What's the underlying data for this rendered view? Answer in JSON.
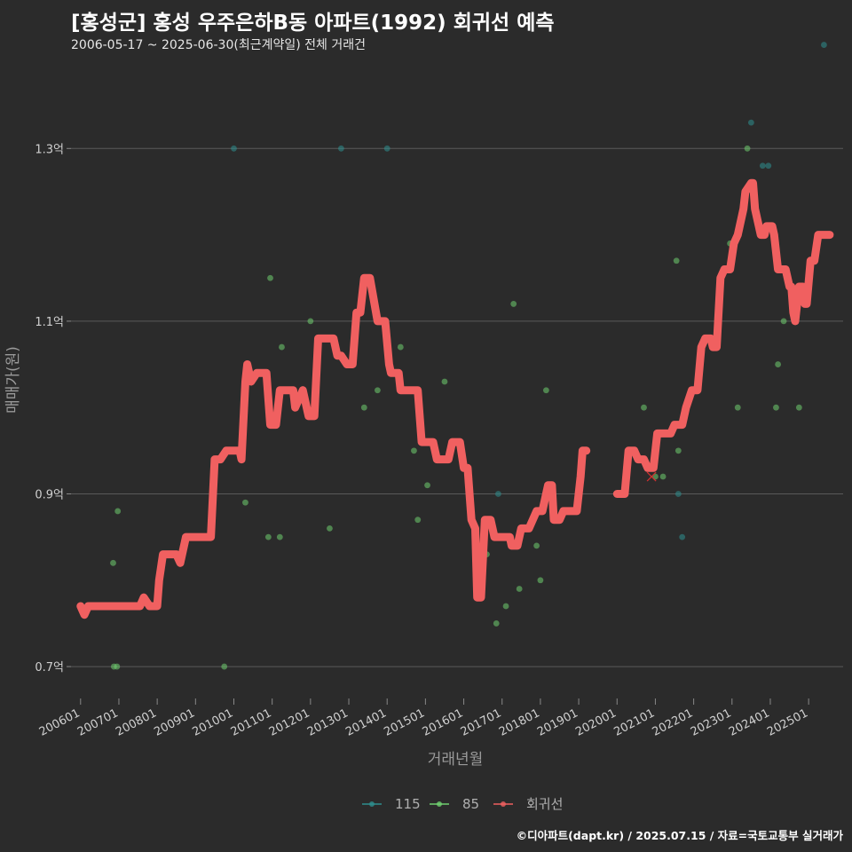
{
  "title": "[홍성군] 홍성 우주은하B동 아파트(1992) 회귀선 예측",
  "subtitle": "2006-05-17 ~ 2025-06-30(최근계약일) 전체 거래건",
  "caption": "©디아파트(dapt.kr) / 2025.07.15 / 자료=국토교통부 실거래가",
  "colors": {
    "background": "#2b2b2b",
    "grid": "#5a5a5a",
    "s115": "#2e8f8f",
    "s85": "#6fcf6f",
    "regression": "#f06060"
  },
  "chart_data": {
    "type": "scatter",
    "title": "[홍성군] 홍성 우주은하B동 아파트(1992) 회귀선 예측",
    "xlabel": "거래년월",
    "ylabel": "매매가(원)",
    "xlim": [
      2005.75,
      2025.9
    ],
    "ylim": [
      0.66,
      1.4
    ],
    "y_ticks": [
      0.7,
      0.9,
      1.1,
      1.3
    ],
    "y_tick_labels": [
      "0.7억",
      "0.9억",
      "1.1억",
      "1.3억"
    ],
    "x_ticks": [
      2006,
      2007,
      2008,
      2009,
      2010,
      2011,
      2012,
      2013,
      2014,
      2015,
      2016,
      2017,
      2018,
      2019,
      2020,
      2021,
      2022,
      2023,
      2024,
      2025
    ],
    "x_tick_labels": [
      "200601",
      "200701",
      "200801",
      "200901",
      "201001",
      "201101",
      "201201",
      "201301",
      "201401",
      "201501",
      "201601",
      "201701",
      "201801",
      "201901",
      "202001",
      "202101",
      "202201",
      "202301",
      "202401",
      "202501"
    ],
    "legend": [
      "115",
      "85",
      "회귀선"
    ],
    "series": [
      {
        "name": "115",
        "color": "#2e8f8f",
        "points": [
          [
            2010.0,
            1.3
          ],
          [
            2012.8,
            1.3
          ],
          [
            2014.0,
            1.3
          ],
          [
            2016.9,
            0.9
          ],
          [
            2021.6,
            0.9
          ],
          [
            2021.7,
            0.85
          ],
          [
            2023.5,
            1.33
          ],
          [
            2023.8,
            1.28
          ],
          [
            2023.95,
            1.28
          ],
          [
            2025.4,
            1.42
          ]
        ]
      },
      {
        "name": "85",
        "color": "#6fcf6f",
        "points": [
          [
            2006.85,
            0.82
          ],
          [
            2006.87,
            0.7
          ],
          [
            2006.95,
            0.7
          ],
          [
            2006.97,
            0.88
          ],
          [
            2007.3,
            0.77
          ],
          [
            2009.75,
            0.7
          ],
          [
            2010.3,
            0.89
          ],
          [
            2010.9,
            0.85
          ],
          [
            2010.95,
            1.15
          ],
          [
            2011.2,
            0.85
          ],
          [
            2011.25,
            1.07
          ],
          [
            2012.0,
            1.1
          ],
          [
            2012.5,
            0.86
          ],
          [
            2013.4,
            1.0
          ],
          [
            2013.75,
            1.02
          ],
          [
            2014.35,
            1.07
          ],
          [
            2014.7,
            0.95
          ],
          [
            2014.8,
            0.87
          ],
          [
            2015.05,
            0.91
          ],
          [
            2015.5,
            1.03
          ],
          [
            2016.6,
            0.83
          ],
          [
            2016.85,
            0.75
          ],
          [
            2017.1,
            0.77
          ],
          [
            2017.3,
            1.12
          ],
          [
            2017.45,
            0.79
          ],
          [
            2017.9,
            0.84
          ],
          [
            2018.0,
            0.8
          ],
          [
            2018.15,
            1.02
          ],
          [
            2020.7,
            1.0
          ],
          [
            2021.0,
            0.92
          ],
          [
            2021.2,
            0.92
          ],
          [
            2021.55,
            1.17
          ],
          [
            2021.6,
            0.95
          ],
          [
            2022.95,
            1.19
          ],
          [
            2023.15,
            1.0
          ],
          [
            2023.4,
            1.3
          ],
          [
            2024.15,
            1.0
          ],
          [
            2024.2,
            1.05
          ],
          [
            2024.35,
            1.1
          ],
          [
            2024.75,
            1.0
          ]
        ]
      },
      {
        "name": "회귀선",
        "color": "#f06060",
        "segments": [
          [
            [
              2006.0,
              0.77
            ],
            [
              2006.1,
              0.76
            ],
            [
              2006.2,
              0.77
            ],
            [
              2006.5,
              0.77
            ],
            [
              2007.0,
              0.77
            ],
            [
              2007.5,
              0.77
            ],
            [
              2007.55,
              0.77
            ],
            [
              2007.65,
              0.78
            ],
            [
              2007.8,
              0.77
            ],
            [
              2008.0,
              0.77
            ],
            [
              2008.05,
              0.8
            ],
            [
              2008.15,
              0.83
            ],
            [
              2008.5,
              0.83
            ],
            [
              2008.6,
              0.82
            ],
            [
              2008.75,
              0.85
            ],
            [
              2009.2,
              0.85
            ],
            [
              2009.4,
              0.85
            ],
            [
              2009.5,
              0.94
            ],
            [
              2009.65,
              0.94
            ],
            [
              2009.8,
              0.95
            ],
            [
              2010.0,
              0.95
            ],
            [
              2010.15,
              0.95
            ],
            [
              2010.2,
              0.94
            ],
            [
              2010.3,
              1.03
            ],
            [
              2010.35,
              1.05
            ],
            [
              2010.45,
              1.03
            ],
            [
              2010.6,
              1.04
            ],
            [
              2010.85,
              1.04
            ],
            [
              2010.95,
              0.98
            ],
            [
              2011.1,
              0.98
            ],
            [
              2011.2,
              1.02
            ],
            [
              2011.55,
              1.02
            ],
            [
              2011.6,
              1.0
            ],
            [
              2011.8,
              1.02
            ],
            [
              2011.95,
              0.99
            ],
            [
              2012.1,
              0.99
            ],
            [
              2012.2,
              1.08
            ],
            [
              2012.6,
              1.08
            ],
            [
              2012.7,
              1.06
            ],
            [
              2012.8,
              1.06
            ],
            [
              2012.95,
              1.05
            ],
            [
              2013.1,
              1.05
            ],
            [
              2013.2,
              1.11
            ],
            [
              2013.3,
              1.11
            ],
            [
              2013.4,
              1.15
            ],
            [
              2013.55,
              1.15
            ],
            [
              2013.75,
              1.1
            ],
            [
              2013.95,
              1.1
            ],
            [
              2014.05,
              1.05
            ],
            [
              2014.1,
              1.04
            ],
            [
              2014.3,
              1.04
            ],
            [
              2014.35,
              1.02
            ],
            [
              2014.8,
              1.02
            ],
            [
              2014.9,
              0.96
            ],
            [
              2015.2,
              0.96
            ],
            [
              2015.3,
              0.94
            ],
            [
              2015.6,
              0.94
            ],
            [
              2015.7,
              0.96
            ],
            [
              2015.9,
              0.96
            ],
            [
              2016.0,
              0.93
            ],
            [
              2016.1,
              0.93
            ],
            [
              2016.2,
              0.87
            ],
            [
              2016.3,
              0.86
            ],
            [
              2016.35,
              0.78
            ],
            [
              2016.4,
              0.78
            ],
            [
              2016.45,
              0.78
            ],
            [
              2016.55,
              0.87
            ],
            [
              2016.7,
              0.87
            ],
            [
              2016.8,
              0.85
            ],
            [
              2017.2,
              0.85
            ],
            [
              2017.25,
              0.84
            ],
            [
              2017.4,
              0.84
            ],
            [
              2017.5,
              0.86
            ],
            [
              2017.7,
              0.86
            ],
            [
              2017.9,
              0.88
            ],
            [
              2018.05,
              0.88
            ],
            [
              2018.2,
              0.91
            ],
            [
              2018.3,
              0.91
            ],
            [
              2018.35,
              0.87
            ],
            [
              2018.5,
              0.87
            ],
            [
              2018.6,
              0.88
            ],
            [
              2018.95,
              0.88
            ],
            [
              2019.05,
              0.92
            ],
            [
              2019.1,
              0.95
            ],
            [
              2019.2,
              0.95
            ]
          ],
          [
            [
              2020.0,
              0.9
            ],
            [
              2020.2,
              0.9
            ],
            [
              2020.3,
              0.95
            ],
            [
              2020.45,
              0.95
            ],
            [
              2020.55,
              0.94
            ],
            [
              2020.7,
              0.94
            ],
            [
              2020.8,
              0.93
            ],
            [
              2020.95,
              0.93
            ],
            [
              2021.05,
              0.97
            ],
            [
              2021.3,
              0.97
            ],
            [
              2021.4,
              0.97
            ],
            [
              2021.5,
              0.98
            ],
            [
              2021.7,
              0.98
            ],
            [
              2021.8,
              1.0
            ],
            [
              2021.95,
              1.02
            ],
            [
              2022.1,
              1.02
            ],
            [
              2022.2,
              1.07
            ],
            [
              2022.3,
              1.08
            ],
            [
              2022.45,
              1.08
            ],
            [
              2022.5,
              1.07
            ],
            [
              2022.6,
              1.07
            ],
            [
              2022.7,
              1.15
            ],
            [
              2022.8,
              1.16
            ],
            [
              2022.95,
              1.16
            ],
            [
              2023.05,
              1.19
            ],
            [
              2023.15,
              1.2
            ],
            [
              2023.3,
              1.23
            ],
            [
              2023.35,
              1.25
            ],
            [
              2023.5,
              1.26
            ],
            [
              2023.55,
              1.26
            ],
            [
              2023.6,
              1.23
            ],
            [
              2023.75,
              1.2
            ],
            [
              2023.85,
              1.2
            ],
            [
              2023.9,
              1.21
            ],
            [
              2024.05,
              1.21
            ],
            [
              2024.1,
              1.2
            ],
            [
              2024.2,
              1.16
            ],
            [
              2024.4,
              1.16
            ],
            [
              2024.5,
              1.14
            ],
            [
              2024.55,
              1.14
            ],
            [
              2024.6,
              1.11
            ],
            [
              2024.65,
              1.1
            ],
            [
              2024.75,
              1.14
            ],
            [
              2024.85,
              1.14
            ],
            [
              2024.9,
              1.12
            ],
            [
              2024.95,
              1.12
            ],
            [
              2025.05,
              1.17
            ],
            [
              2025.15,
              1.17
            ],
            [
              2025.25,
              1.2
            ],
            [
              2025.55,
              1.2
            ]
          ]
        ]
      }
    ],
    "annotations": [
      {
        "type": "cross-marker",
        "x": 2020.9,
        "y": 0.92,
        "color": "#d03030"
      }
    ]
  }
}
